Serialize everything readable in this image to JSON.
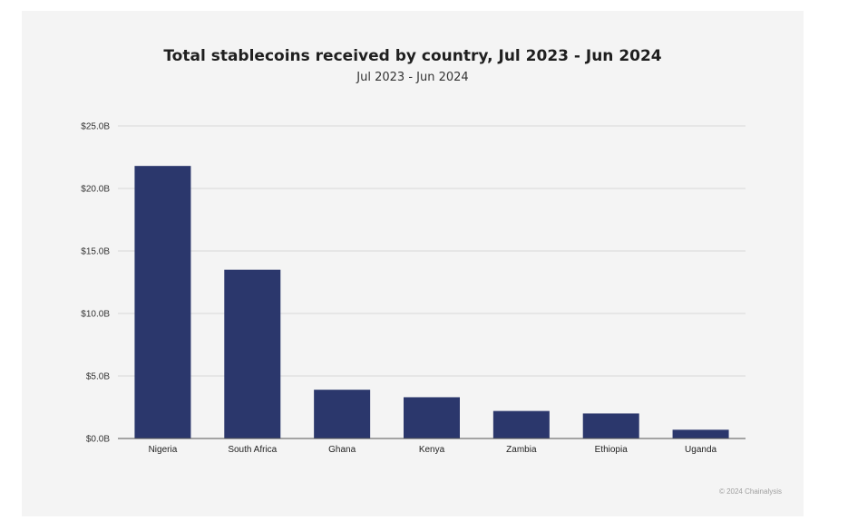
{
  "chart_data": {
    "type": "bar",
    "title": "Total stablecoins received by country, Jul 2023 - Jun 2024",
    "subtitle": "Jul 2023 - Jun 2024",
    "categories": [
      "Nigeria",
      "South Africa",
      "Ghana",
      "Kenya",
      "Zambia",
      "Ethiopia",
      "Uganda"
    ],
    "values": [
      21.8,
      13.5,
      3.9,
      3.3,
      2.2,
      2.0,
      0.7
    ],
    "yticks": [
      0,
      5,
      10,
      15,
      20,
      25
    ],
    "ytick_labels": [
      "$0.0B",
      "$5.0B",
      "$10.0B",
      "$15.0B",
      "$20.0B",
      "$25.0B"
    ],
    "ylim": [
      0,
      25
    ],
    "xlabel": "",
    "ylabel": "",
    "grid": true,
    "bar_color": "#2b376c",
    "grid_color": "#d9d9d9",
    "axis_color": "#555555"
  },
  "footer": {
    "copyright": "© 2024 Chainalysis"
  }
}
